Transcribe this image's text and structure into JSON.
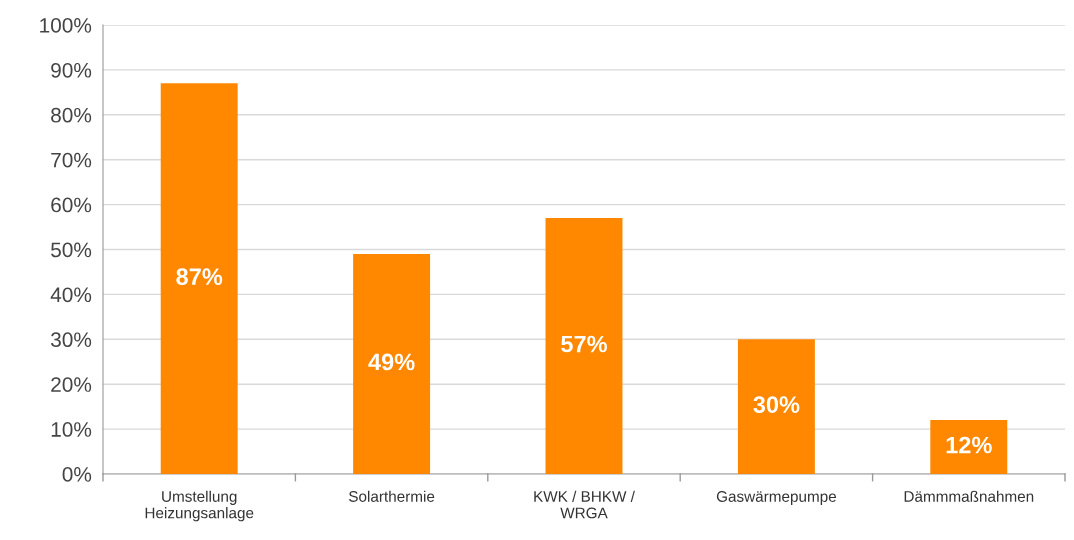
{
  "chart_data": {
    "type": "bar",
    "categories": [
      "Umstellung\nHeizungsanlage",
      "Solarthermie",
      "KWK / BHKW /\nWRGA",
      "Gaswärmepumpe",
      "Dämmmaßnahmen"
    ],
    "values": [
      87,
      49,
      57,
      30,
      12
    ],
    "color": "#ff8800",
    "ylim": [
      0,
      100
    ],
    "yticks": [
      {
        "value": 0,
        "label": "0%"
      },
      {
        "value": 10,
        "label": "10%"
      },
      {
        "value": 20,
        "label": "20%"
      },
      {
        "value": 30,
        "label": "30%"
      },
      {
        "value": 40,
        "label": "40%"
      },
      {
        "value": 50,
        "label": "50%"
      },
      {
        "value": 60,
        "label": "60%"
      },
      {
        "value": 70,
        "label": "70%"
      },
      {
        "value": 80,
        "label": "80%"
      },
      {
        "value": 90,
        "label": "90%"
      },
      {
        "value": 100,
        "label": "100%"
      }
    ],
    "value_labels": [
      "87%",
      "49%",
      "57%",
      "30%",
      "12%"
    ],
    "grid": "y"
  }
}
